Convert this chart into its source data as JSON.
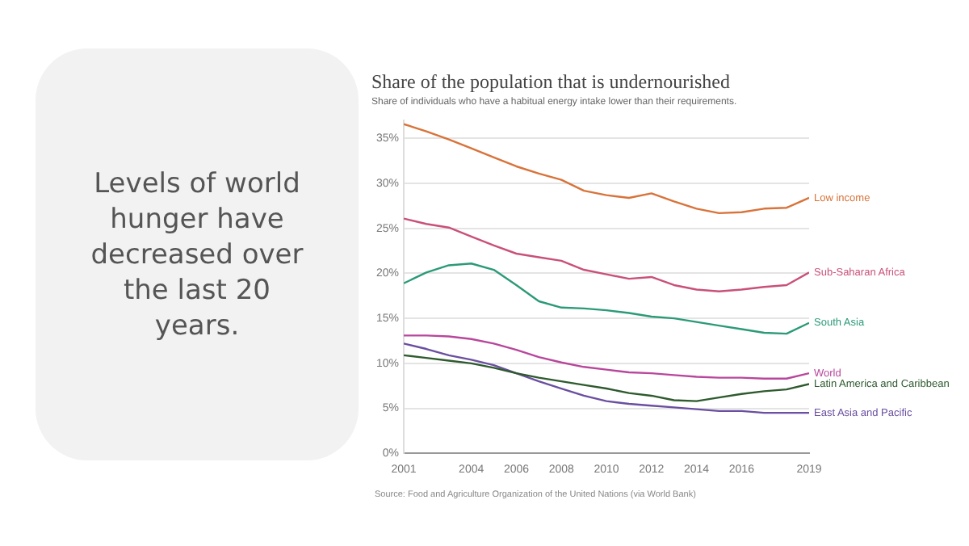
{
  "chart_data": [
    {
      "type": "other",
      "annotations": [
        "Levels of world hunger have decreased over the last 20 years."
      ]
    },
    {
      "type": "line",
      "title": "Share of the population that is undernourished",
      "subtitle": "Share of individuals who have a habitual energy intake lower than their requirements.",
      "annotations": [
        "Source: Food and Agriculture Organization of the United Nations (via World Bank)"
      ],
      "x": [
        2001,
        2002,
        2003,
        2004,
        2005,
        2006,
        2007,
        2008,
        2009,
        2010,
        2011,
        2012,
        2013,
        2014,
        2015,
        2016,
        2017,
        2018,
        2019
      ],
      "xlim": [
        2001,
        2019
      ],
      "xticks": [
        2001,
        2004,
        2006,
        2008,
        2010,
        2012,
        2014,
        2016,
        2019
      ],
      "ylim": [
        0,
        37
      ],
      "yticks": [
        {
          "value": 0,
          "label": "0%"
        },
        {
          "value": 5,
          "label": "5%"
        },
        {
          "value": 10,
          "label": "10%"
        },
        {
          "value": 15,
          "label": "15%"
        },
        {
          "value": 20,
          "label": "20%"
        },
        {
          "value": 25,
          "label": "25%"
        },
        {
          "value": 30,
          "label": "30%"
        },
        {
          "value": 35,
          "label": "35%"
        }
      ],
      "grid": "y",
      "series": [
        {
          "name": "Low income",
          "color": "#d8733a",
          "values": [
            36.6,
            35.8,
            34.9,
            33.9,
            32.9,
            31.9,
            31.1,
            30.4,
            29.2,
            28.7,
            28.4,
            28.9,
            28.0,
            27.2,
            26.7,
            26.8,
            27.2,
            27.3,
            28.4
          ]
        },
        {
          "name": "Sub-Saharan Africa",
          "color": "#c9507a",
          "values": [
            26.1,
            25.5,
            25.1,
            24.1,
            23.1,
            22.2,
            21.8,
            21.4,
            20.4,
            19.9,
            19.4,
            19.6,
            18.7,
            18.2,
            18.0,
            18.2,
            18.5,
            18.7,
            20.1
          ]
        },
        {
          "name": "South Asia",
          "color": "#2b9a78",
          "values": [
            18.9,
            20.1,
            20.9,
            21.1,
            20.4,
            18.7,
            16.9,
            16.2,
            16.1,
            15.9,
            15.6,
            15.2,
            15.0,
            14.6,
            14.2,
            13.8,
            13.4,
            13.3,
            14.5
          ]
        },
        {
          "name": "World",
          "color": "#b8479c",
          "values": [
            13.1,
            13.1,
            13.0,
            12.7,
            12.2,
            11.5,
            10.7,
            10.1,
            9.6,
            9.3,
            9.0,
            8.9,
            8.7,
            8.5,
            8.4,
            8.4,
            8.3,
            8.3,
            8.9
          ]
        },
        {
          "name": "Latin America and Caribbean",
          "color": "#2e5a2e",
          "values": [
            10.9,
            10.6,
            10.3,
            10.0,
            9.5,
            8.9,
            8.4,
            8.0,
            7.6,
            7.2,
            6.7,
            6.4,
            5.9,
            5.8,
            6.2,
            6.6,
            6.9,
            7.1,
            7.7
          ]
        },
        {
          "name": "East Asia and Pacific",
          "color": "#6a4fa0",
          "values": [
            12.2,
            11.6,
            10.9,
            10.4,
            9.8,
            8.9,
            8.0,
            7.2,
            6.4,
            5.8,
            5.5,
            5.3,
            5.1,
            4.9,
            4.7,
            4.7,
            4.5,
            4.5,
            4.5
          ]
        }
      ]
    }
  ]
}
